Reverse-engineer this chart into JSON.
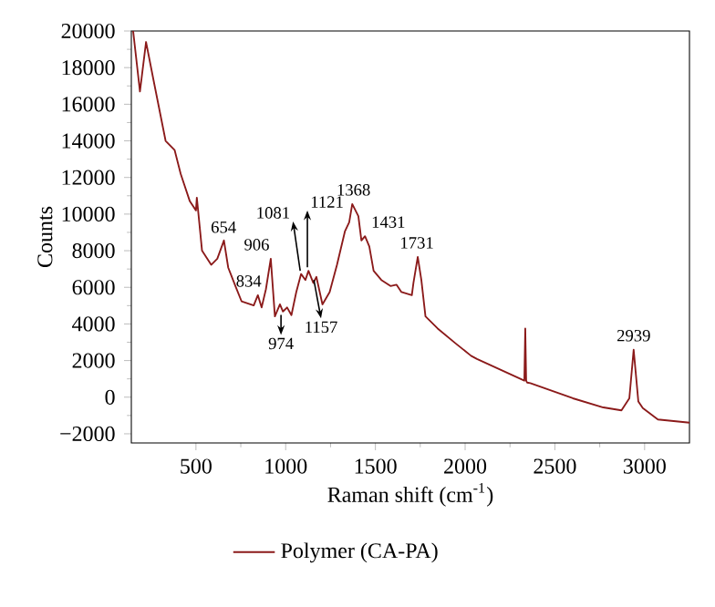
{
  "chart_data": {
    "type": "line",
    "xlabel": "Raman shift (cm$^{-1}$)",
    "ylabel": "Counts",
    "xlim": [
      140,
      3250
    ],
    "ylim": [
      -2500,
      20000
    ],
    "xticks": [
      500,
      1000,
      1500,
      2000,
      2500,
      3000
    ],
    "yticks": [
      {
        "value": -2000,
        "label": "−2000"
      },
      0,
      2000,
      4000,
      6000,
      8000,
      10000,
      12000,
      14000,
      16000,
      18000,
      20000
    ],
    "grid": false,
    "legend": "bottom",
    "marker": "none",
    "line_style": "solid",
    "series": [
      {
        "name": "Polymer (CA-PA)",
        "color": "#8b1a1a",
        "x": [
          150,
          188,
          222,
          263,
          331,
          381,
          415,
          466,
          500,
          505,
          534,
          585,
          619,
          656,
          680,
          720,
          754,
          822,
          845,
          866,
          890,
          917,
          940,
          968,
          985,
          1008,
          1032,
          1059,
          1086,
          1110,
          1127,
          1154,
          1171,
          1205,
          1245,
          1286,
          1330,
          1354,
          1371,
          1388,
          1405,
          1422,
          1442,
          1466,
          1490,
          1533,
          1584,
          1618,
          1645,
          1703,
          1712,
          1736,
          1756,
          1779,
          1847,
          1949,
          2033,
          2066,
          2330,
          2335,
          2340,
          2345,
          2363,
          2600,
          2770,
          2871,
          2915,
          2939,
          2965,
          2990,
          3074,
          3250
        ],
        "values": [
          20000,
          16700,
          19400,
          17350,
          14000,
          13500,
          12200,
          10700,
          10200,
          10900,
          8000,
          7230,
          7560,
          8560,
          7070,
          6070,
          5240,
          5010,
          5570,
          4900,
          5900,
          7560,
          4410,
          5070,
          4680,
          4900,
          4480,
          5740,
          6730,
          6400,
          6900,
          6240,
          6570,
          5070,
          5740,
          7230,
          9050,
          9550,
          10550,
          10220,
          9890,
          8560,
          8790,
          8230,
          6900,
          6400,
          6070,
          6140,
          5740,
          5570,
          6240,
          7660,
          6400,
          4410,
          3750,
          2920,
          2260,
          2090,
          900,
          3750,
          900,
          800,
          770,
          -60,
          -560,
          -720,
          -60,
          2590,
          -230,
          -600,
          -1220,
          -1390
        ]
      }
    ],
    "annotations": [
      {
        "text": "654",
        "x": 654,
        "y": 8560
      },
      {
        "text": "834",
        "x": 834,
        "y": 5570
      },
      {
        "text": "906",
        "x": 906,
        "y": 7560
      },
      {
        "text": "974",
        "x": 974,
        "y": 4700
      },
      {
        "text": "1081",
        "x": 1081,
        "y": 6700
      },
      {
        "text": "1121",
        "x": 1121,
        "y": 6900
      },
      {
        "text": "1157",
        "x": 1157,
        "y": 6600
      },
      {
        "text": "1368",
        "x": 1368,
        "y": 10550
      },
      {
        "text": "1431",
        "x": 1431,
        "y": 8790
      },
      {
        "text": "1731",
        "x": 1731,
        "y": 7660
      },
      {
        "text": "2939",
        "x": 2939,
        "y": 2590
      }
    ]
  }
}
